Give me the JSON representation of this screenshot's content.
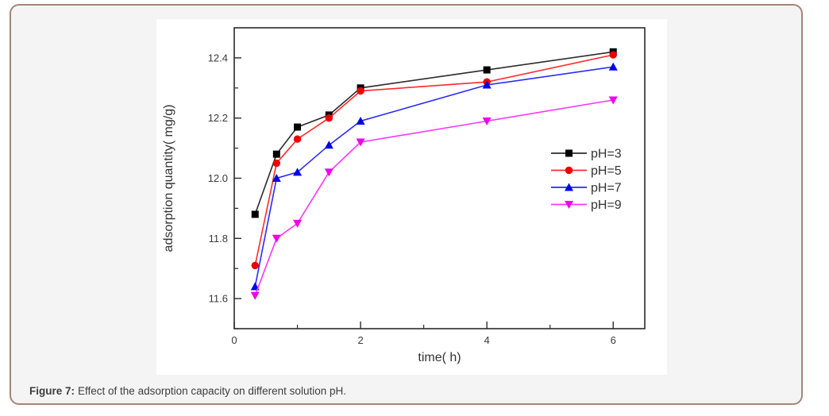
{
  "page": {
    "background": "#ffffff"
  },
  "card": {
    "background": "#f4f4f4",
    "border_color": "#a58578"
  },
  "caption": {
    "label": "Figure 7:",
    "text": "Effect of the adsorption capacity on different solution pH."
  },
  "chart_data": {
    "type": "line",
    "title": "",
    "xlabel": "time( h)",
    "ylabel": "adsorption quantity( mg/g)",
    "x": [
      0.33,
      0.67,
      1,
      1.5,
      2,
      4,
      6
    ],
    "series": [
      {
        "name": "pH=3",
        "marker": "square",
        "line_color": "#2b2b2b",
        "marker_color": "#000000",
        "values": [
          11.88,
          12.08,
          12.17,
          12.21,
          12.3,
          12.36,
          12.42
        ]
      },
      {
        "name": "pH=5",
        "marker": "circle",
        "line_color": "#ff2a2a",
        "marker_color": "#ee0000",
        "values": [
          11.71,
          12.05,
          12.13,
          12.2,
          12.29,
          12.32,
          12.41
        ]
      },
      {
        "name": "pH=7",
        "marker": "triangle-up",
        "line_color": "#2a2aff",
        "marker_color": "#0000ee",
        "values": [
          11.64,
          12.0,
          12.02,
          12.11,
          12.19,
          12.31,
          12.37
        ]
      },
      {
        "name": "pH=9",
        "marker": "triangle-down",
        "line_color": "#ff35ff",
        "marker_color": "#ee00ee",
        "values": [
          11.61,
          11.8,
          11.85,
          12.02,
          12.12,
          12.19,
          12.26
        ]
      }
    ],
    "xlim": [
      0,
      6.5
    ],
    "ylim": [
      11.5,
      12.5
    ],
    "x_major_ticks": [
      0,
      2,
      4,
      6
    ],
    "x_minor_ticks": [
      1,
      3,
      5
    ],
    "y_major_ticks": [
      11.6,
      11.8,
      12.0,
      12.2,
      12.4
    ],
    "y_minor_ticks": [
      11.5,
      11.7,
      11.9,
      12.1,
      12.3
    ],
    "grid": false,
    "legend_position": "right-middle",
    "axis_color": "#2b2b2b",
    "tick_label_color": "#3a3a3a",
    "label_color": "#333333"
  }
}
